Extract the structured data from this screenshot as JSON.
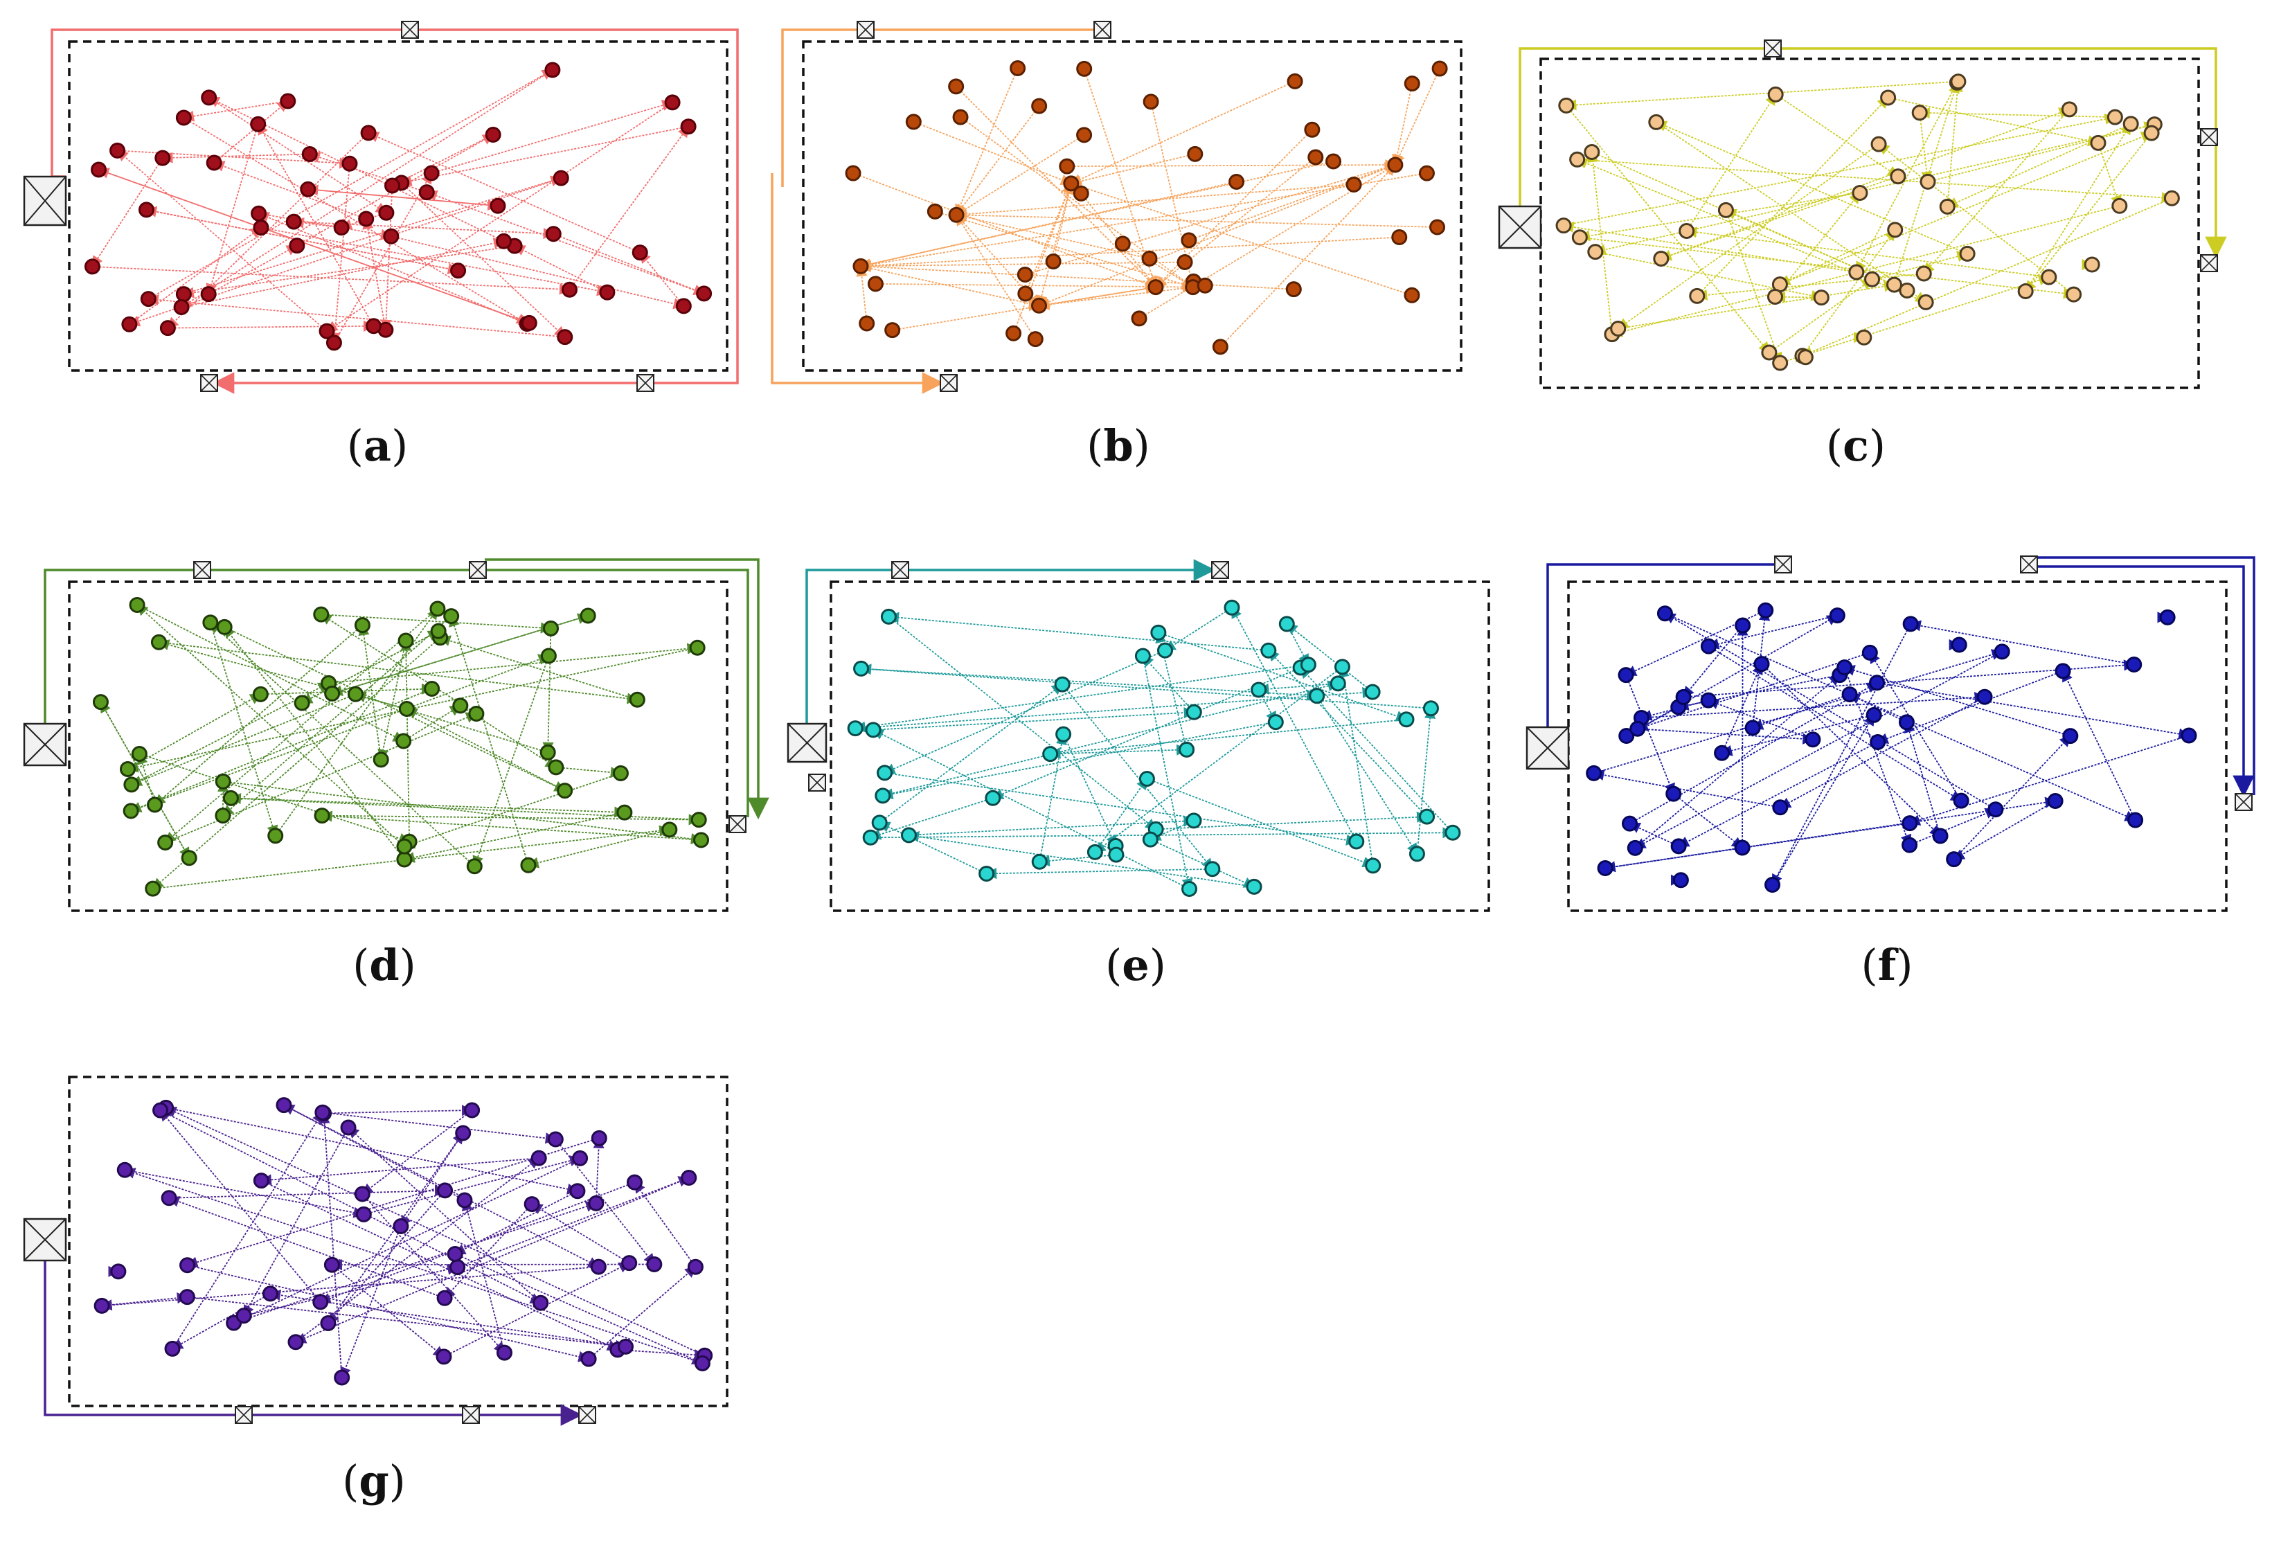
{
  "figure": {
    "panels": [
      {
        "id": "a",
        "caption_open": "(",
        "caption_letter": "a",
        "caption_close": ")",
        "color": "#f26d6d",
        "node_fill": "#a0101c",
        "node_stroke": "#5a0008"
      },
      {
        "id": "b",
        "caption_open": "(",
        "caption_letter": "b",
        "caption_close": ")",
        "color": "#f7a35c",
        "node_fill": "#b8480a",
        "node_stroke": "#5a2000"
      },
      {
        "id": "c",
        "caption_open": "(",
        "caption_letter": "c",
        "caption_close": ")",
        "color": "#cccc22",
        "node_fill": "#f3c48e",
        "node_stroke": "#4a3a20"
      },
      {
        "id": "d",
        "caption_open": "(",
        "caption_letter": "d",
        "caption_close": ")",
        "color": "#4f8a2b",
        "node_fill": "#5a9a1e",
        "node_stroke": "#1f3a08"
      },
      {
        "id": "e",
        "caption_open": "(",
        "caption_letter": "e",
        "caption_close": ")",
        "color": "#1e9a9a",
        "node_fill": "#2ad6d0",
        "node_stroke": "#0a4a4a"
      },
      {
        "id": "f",
        "caption_open": "(",
        "caption_letter": "f",
        "caption_close": ")",
        "color": "#1a1aa0",
        "node_fill": "#1a1ab8",
        "node_stroke": "#06065a"
      },
      {
        "id": "g",
        "caption_open": "(",
        "caption_letter": "g",
        "caption_close": ")",
        "color": "#4a2290",
        "node_fill": "#5a20a8",
        "node_stroke": "#220a50"
      }
    ]
  }
}
